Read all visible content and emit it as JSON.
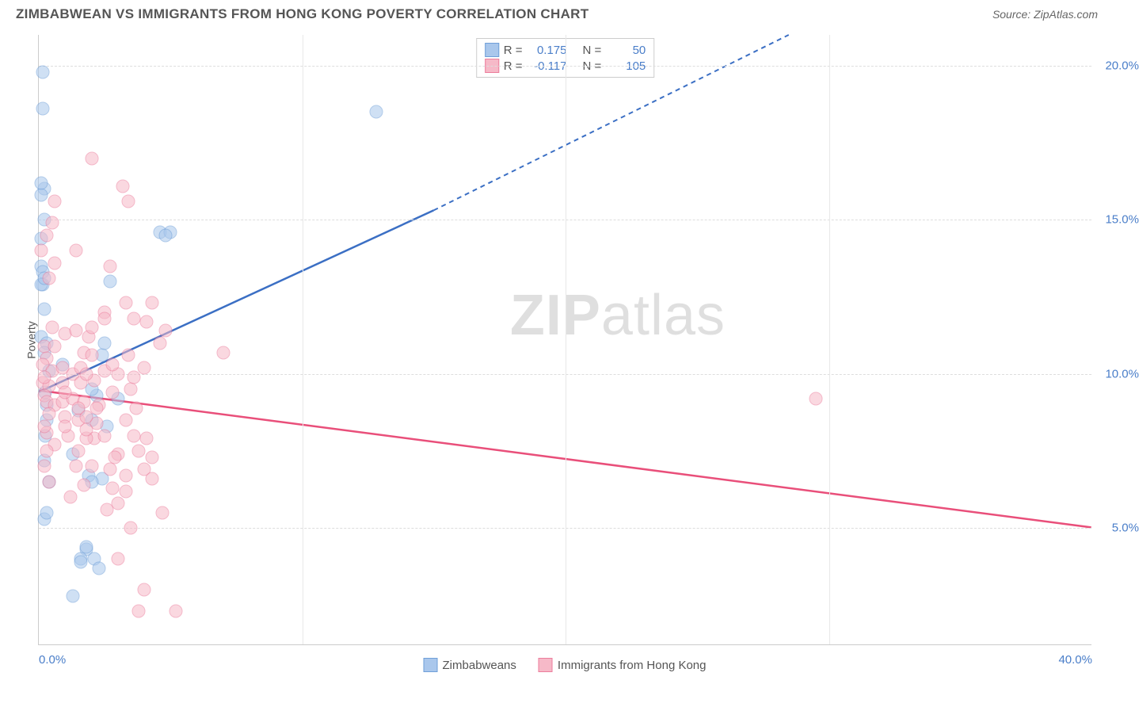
{
  "title": "ZIMBABWEAN VS IMMIGRANTS FROM HONG KONG POVERTY CORRELATION CHART",
  "source": "Source: ZipAtlas.com",
  "y_axis_title": "Poverty",
  "watermark_bold": "ZIP",
  "watermark_light": "atlas",
  "chart": {
    "type": "scatter",
    "xlim": [
      0,
      40
    ],
    "ylim": [
      1.2,
      21
    ],
    "x_ticks": [
      0,
      40
    ],
    "x_tick_labels": [
      "0.0%",
      "40.0%"
    ],
    "y_ticks": [
      5,
      10,
      15,
      20
    ],
    "y_tick_labels": [
      "5.0%",
      "10.0%",
      "15.0%",
      "20.0%"
    ],
    "x_minor_gridlines": [
      10,
      20,
      30
    ],
    "background_color": "#ffffff",
    "grid_color": "#dddddd",
    "series": [
      {
        "name": "Zimbabweans",
        "color_fill": "#a9c7ec",
        "color_stroke": "#6f9fd8",
        "R": "0.175",
        "N": "50",
        "trend": {
          "x1": 0,
          "y1": 9.4,
          "x2_solid": 15,
          "y2_solid": 15.3,
          "x2_dash": 28.5,
          "y2_dash": 21
        },
        "trend_color": "#3b6fc4",
        "points": [
          [
            0.15,
            19.8
          ],
          [
            0.15,
            18.6
          ],
          [
            12.8,
            18.5
          ],
          [
            0.2,
            16.0
          ],
          [
            0.1,
            15.8
          ],
          [
            4.6,
            14.6
          ],
          [
            5.0,
            14.6
          ],
          [
            0.1,
            14.4
          ],
          [
            0.1,
            13.5
          ],
          [
            0.15,
            13.3
          ],
          [
            0.15,
            12.9
          ],
          [
            0.1,
            12.9
          ],
          [
            2.7,
            13.0
          ],
          [
            0.2,
            12.1
          ],
          [
            0.9,
            10.3
          ],
          [
            2.4,
            10.6
          ],
          [
            0.4,
            10.1
          ],
          [
            2.2,
            9.3
          ],
          [
            0.25,
            9.4
          ],
          [
            2.0,
            8.5
          ],
          [
            2.6,
            8.3
          ],
          [
            0.25,
            8.0
          ],
          [
            1.3,
            7.4
          ],
          [
            1.9,
            6.7
          ],
          [
            2.4,
            6.6
          ],
          [
            0.4,
            6.5
          ],
          [
            0.2,
            5.3
          ],
          [
            1.8,
            4.3
          ],
          [
            1.6,
            4.0
          ],
          [
            2.1,
            4.0
          ],
          [
            2.3,
            3.7
          ],
          [
            1.3,
            2.8
          ],
          [
            2.5,
            11.0
          ],
          [
            0.1,
            11.2
          ],
          [
            0.3,
            11.0
          ],
          [
            0.2,
            10.7
          ],
          [
            0.3,
            9.0
          ],
          [
            2.0,
            9.5
          ],
          [
            0.3,
            8.5
          ],
          [
            1.5,
            8.8
          ],
          [
            3.0,
            9.2
          ],
          [
            0.2,
            7.2
          ],
          [
            0.1,
            16.2
          ],
          [
            0.2,
            15.0
          ],
          [
            4.8,
            14.5
          ],
          [
            0.2,
            13.1
          ],
          [
            2.0,
            6.5
          ],
          [
            1.6,
            3.9
          ],
          [
            0.3,
            5.5
          ],
          [
            1.8,
            4.4
          ]
        ]
      },
      {
        "name": "Immigrants from Hong Kong",
        "color_fill": "#f6b9c8",
        "color_stroke": "#ec7d9c",
        "R": "-0.117",
        "N": "105",
        "trend": {
          "x1": 0,
          "y1": 9.45,
          "x2_solid": 40,
          "y2_solid": 5.0
        },
        "trend_color": "#e94f7a",
        "points": [
          [
            2.0,
            17.0
          ],
          [
            3.2,
            16.1
          ],
          [
            0.6,
            15.6
          ],
          [
            3.4,
            15.6
          ],
          [
            0.5,
            14.9
          ],
          [
            0.3,
            14.5
          ],
          [
            0.1,
            14.0
          ],
          [
            1.4,
            14.0
          ],
          [
            0.6,
            13.6
          ],
          [
            0.4,
            13.1
          ],
          [
            2.7,
            13.5
          ],
          [
            3.3,
            12.3
          ],
          [
            4.3,
            12.3
          ],
          [
            2.5,
            12.0
          ],
          [
            3.6,
            11.8
          ],
          [
            4.1,
            11.7
          ],
          [
            0.5,
            11.5
          ],
          [
            1.0,
            11.3
          ],
          [
            1.4,
            11.4
          ],
          [
            1.9,
            11.2
          ],
          [
            4.8,
            11.4
          ],
          [
            0.2,
            10.9
          ],
          [
            0.6,
            10.9
          ],
          [
            0.3,
            10.5
          ],
          [
            1.7,
            10.7
          ],
          [
            2.0,
            10.6
          ],
          [
            3.4,
            10.6
          ],
          [
            7.0,
            10.7
          ],
          [
            0.15,
            10.3
          ],
          [
            0.5,
            10.1
          ],
          [
            0.9,
            10.2
          ],
          [
            1.3,
            10.0
          ],
          [
            1.6,
            10.2
          ],
          [
            2.5,
            10.1
          ],
          [
            3.0,
            10.0
          ],
          [
            0.15,
            9.7
          ],
          [
            0.4,
            9.6
          ],
          [
            0.9,
            9.7
          ],
          [
            1.6,
            9.7
          ],
          [
            2.1,
            9.8
          ],
          [
            0.2,
            9.3
          ],
          [
            0.3,
            9.1
          ],
          [
            0.6,
            9.0
          ],
          [
            0.9,
            9.1
          ],
          [
            1.3,
            9.2
          ],
          [
            1.7,
            9.1
          ],
          [
            2.3,
            9.0
          ],
          [
            29.5,
            9.2
          ],
          [
            0.4,
            8.7
          ],
          [
            1.0,
            8.6
          ],
          [
            1.5,
            8.5
          ],
          [
            2.2,
            8.4
          ],
          [
            3.3,
            8.5
          ],
          [
            0.3,
            8.1
          ],
          [
            1.1,
            8.0
          ],
          [
            2.1,
            7.9
          ],
          [
            4.1,
            7.9
          ],
          [
            0.6,
            7.7
          ],
          [
            0.3,
            7.5
          ],
          [
            1.5,
            7.5
          ],
          [
            3.0,
            7.4
          ],
          [
            3.8,
            7.5
          ],
          [
            4.3,
            7.3
          ],
          [
            0.2,
            7.0
          ],
          [
            2.0,
            7.0
          ],
          [
            2.7,
            6.9
          ],
          [
            4.0,
            6.9
          ],
          [
            0.4,
            6.5
          ],
          [
            4.3,
            6.6
          ],
          [
            2.8,
            6.3
          ],
          [
            3.3,
            6.2
          ],
          [
            1.2,
            6.0
          ],
          [
            3.0,
            5.8
          ],
          [
            4.7,
            5.5
          ],
          [
            3.5,
            5.0
          ],
          [
            3.0,
            4.0
          ],
          [
            4.0,
            3.0
          ],
          [
            3.8,
            2.3
          ],
          [
            5.2,
            2.3
          ],
          [
            2.8,
            10.3
          ],
          [
            1.8,
            10.0
          ],
          [
            3.5,
            9.5
          ],
          [
            2.2,
            8.9
          ],
          [
            1.8,
            8.6
          ],
          [
            2.5,
            8.0
          ],
          [
            1.8,
            7.9
          ],
          [
            3.6,
            9.9
          ],
          [
            2.0,
            11.5
          ],
          [
            2.5,
            11.8
          ],
          [
            4.0,
            10.2
          ],
          [
            4.6,
            11.0
          ],
          [
            0.2,
            9.9
          ],
          [
            1.0,
            9.4
          ],
          [
            1.5,
            8.9
          ],
          [
            2.8,
            9.4
          ],
          [
            3.7,
            8.9
          ],
          [
            0.2,
            8.3
          ],
          [
            1.8,
            8.2
          ],
          [
            3.6,
            8.0
          ],
          [
            2.9,
            7.3
          ],
          [
            1.4,
            7.0
          ],
          [
            3.3,
            6.7
          ],
          [
            1.7,
            6.4
          ],
          [
            2.6,
            5.6
          ],
          [
            1.0,
            8.3
          ]
        ]
      }
    ]
  },
  "legend_box": {
    "rows": [
      {
        "r_label": "R =",
        "n_label": "N ="
      },
      {
        "r_label": "R =",
        "n_label": "N ="
      }
    ]
  },
  "bottom_legend": [
    "Zimbabweans",
    "Immigrants from Hong Kong"
  ]
}
